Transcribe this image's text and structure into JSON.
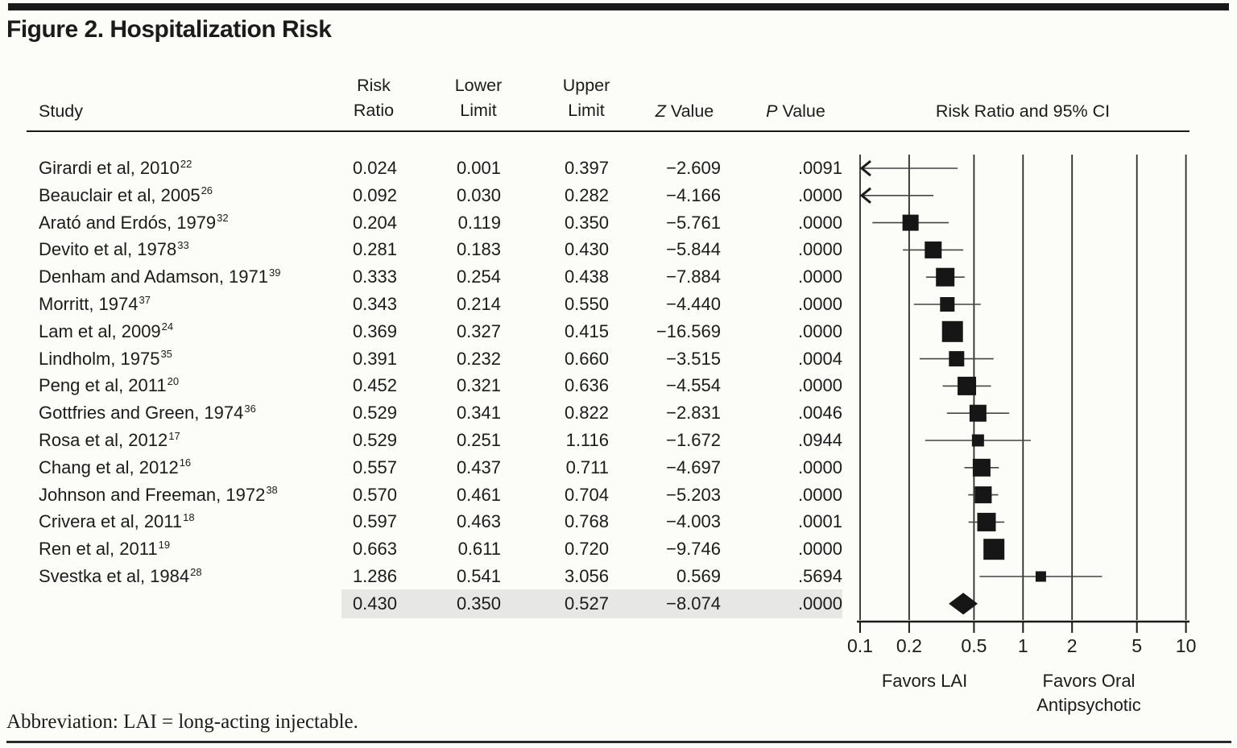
{
  "figure": {
    "title": "Figure 2. Hospitalization Risk",
    "footnote": "Abbreviation: LAI = long-acting injectable."
  },
  "table": {
    "headers": {
      "study": "Study",
      "risk": [
        "Risk",
        "Ratio"
      ],
      "lower": [
        "Lower",
        "Limit"
      ],
      "upper": [
        "Upper",
        "Limit"
      ],
      "z": [
        "Z",
        " Value"
      ],
      "p": [
        "P",
        " Value"
      ],
      "ci": "Risk Ratio and 95% CI"
    }
  },
  "chart_data": {
    "type": "scatter",
    "subtype": "forest-plot",
    "title": "Risk Ratio and 95% CI",
    "x_scale": "log10",
    "xlim": [
      0.1,
      10
    ],
    "x_ticks": [
      0.1,
      0.2,
      0.5,
      1,
      2,
      5,
      10
    ],
    "x_tick_labels": [
      "0.1",
      "0.2",
      "0.5",
      "1",
      "2",
      "5",
      "10"
    ],
    "favors_left": "Favors LAI",
    "favors_right": [
      "Favors Oral",
      "Antipsychotic"
    ],
    "studies": [
      {
        "label": "Girardi et al, 2010",
        "ref": "22",
        "rr": "0.024",
        "lower": "0.001",
        "upper": "0.397",
        "z": "−2.609",
        "p": ".0091",
        "size": 0
      },
      {
        "label": "Beauclair et al, 2005",
        "ref": "26",
        "rr": "0.092",
        "lower": "0.030",
        "upper": "0.282",
        "z": "−4.166",
        "p": ".0000",
        "size": 0
      },
      {
        "label": "Arató and Erdós, 1979",
        "ref": "32",
        "rr": "0.204",
        "lower": "0.119",
        "upper": "0.350",
        "z": "−5.761",
        "p": ".0000",
        "size": 20
      },
      {
        "label": "Devito et al, 1978",
        "ref": "33",
        "rr": "0.281",
        "lower": "0.183",
        "upper": "0.430",
        "z": "−5.844",
        "p": ".0000",
        "size": 21
      },
      {
        "label": "Denham and Adamson, 1971",
        "ref": "39",
        "rr": "0.333",
        "lower": "0.254",
        "upper": "0.438",
        "z": "−7.884",
        "p": ".0000",
        "size": 23
      },
      {
        "label": "Morritt, 1974",
        "ref": "37",
        "rr": "0.343",
        "lower": "0.214",
        "upper": "0.550",
        "z": "−4.440",
        "p": ".0000",
        "size": 18
      },
      {
        "label": "Lam et al, 2009",
        "ref": "24",
        "rr": "0.369",
        "lower": "0.327",
        "upper": "0.415",
        "z": "−16.569",
        "p": ".0000",
        "size": 26
      },
      {
        "label": "Lindholm, 1975",
        "ref": "35",
        "rr": "0.391",
        "lower": "0.232",
        "upper": "0.660",
        "z": "−3.515",
        "p": ".0004",
        "size": 19
      },
      {
        "label": "Peng et al, 2011",
        "ref": "20",
        "rr": "0.452",
        "lower": "0.321",
        "upper": "0.636",
        "z": "−4.554",
        "p": ".0000",
        "size": 23
      },
      {
        "label": "Gottfries and Green, 1974",
        "ref": "36",
        "rr": "0.529",
        "lower": "0.341",
        "upper": "0.822",
        "z": "−2.831",
        "p": ".0046",
        "size": 21
      },
      {
        "label": "Rosa et al, 2012",
        "ref": "17",
        "rr": "0.529",
        "lower": "0.251",
        "upper": "1.116",
        "z": "−1.672",
        "p": ".0944",
        "size": 15
      },
      {
        "label": "Chang et al, 2012",
        "ref": "16",
        "rr": "0.557",
        "lower": "0.437",
        "upper": "0.711",
        "z": "−4.697",
        "p": ".0000",
        "size": 22
      },
      {
        "label": "Johnson and Freeman, 1972",
        "ref": "38",
        "rr": "0.570",
        "lower": "0.461",
        "upper": "0.704",
        "z": "−5.203",
        "p": ".0000",
        "size": 21
      },
      {
        "label": "Crivera et al, 2011",
        "ref": "18",
        "rr": "0.597",
        "lower": "0.463",
        "upper": "0.768",
        "z": "−4.003",
        "p": ".0001",
        "size": 23
      },
      {
        "label": "Ren et al, 2011",
        "ref": "19",
        "rr": "0.663",
        "lower": "0.611",
        "upper": "0.720",
        "z": "−9.746",
        "p": ".0000",
        "size": 26
      },
      {
        "label": "Svestka et al, 1984",
        "ref": "28",
        "rr": "1.286",
        "lower": "0.541",
        "upper": "3.056",
        "z": "0.569",
        "p": ".5694",
        "size": 13
      }
    ],
    "summary": {
      "rr": "0.430",
      "lower": "0.350",
      "upper": "0.527",
      "z": "−8.074",
      "p": ".0000"
    },
    "colors": {
      "ink": "#1b1b1b",
      "marker": "#161616",
      "highlight": "#e7e7e5"
    }
  }
}
